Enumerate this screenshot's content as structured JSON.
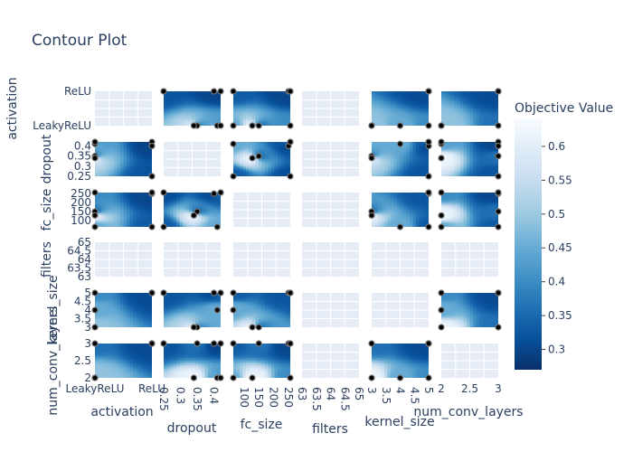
{
  "chart_data": {
    "type": "contour",
    "title": "Contour Plot",
    "parameters": [
      "activation",
      "dropout",
      "fc_size",
      "filters",
      "kernel_size",
      "num_conv_layers"
    ],
    "axes": {
      "activation": {
        "categories": [
          "LeakyReLU",
          "ReLU"
        ],
        "tick_labels": [
          "LeakyReLU",
          "ReLU"
        ]
      },
      "dropout": {
        "range": [
          0.25,
          0.42
        ],
        "tick_labels": [
          "0.25",
          "0.3",
          "0.35",
          "0.4"
        ]
      },
      "fc_size": {
        "range": [
          64,
          256
        ],
        "tick_labels": [
          "100",
          "150",
          "200",
          "250"
        ]
      },
      "filters": {
        "range": [
          63,
          65
        ],
        "tick_labels": [
          "63",
          "63.5",
          "64",
          "64.5",
          "65"
        ]
      },
      "kernel_size": {
        "range": [
          3,
          5
        ],
        "tick_labels": [
          "3",
          "3.5",
          "4",
          "4.5",
          "5"
        ]
      },
      "num_conv_layers": {
        "range": [
          2,
          3
        ],
        "tick_labels": [
          "2",
          "2.5",
          "3"
        ]
      }
    },
    "colorbar": {
      "title": "Objective Value",
      "range": [
        0.27,
        0.64
      ],
      "tick_labels": [
        "0.3",
        "0.35",
        "0.4",
        "0.45",
        "0.5",
        "0.55",
        "0.6"
      ],
      "colorscale": [
        "#08306b",
        "#08519c",
        "#2171b5",
        "#4292c6",
        "#6baed6",
        "#9ecae1",
        "#c6dbef",
        "#deebf7",
        "#f7fbff"
      ]
    },
    "trials": [
      {
        "activation": "ReLU",
        "dropout": 0.25,
        "fc_size": 64,
        "filters": 64,
        "kernel_size": 5,
        "num_conv_layers": 3,
        "value": 0.33
      },
      {
        "activation": "ReLU",
        "dropout": 0.42,
        "fc_size": 256,
        "filters": 64,
        "kernel_size": 5,
        "num_conv_layers": 3,
        "value": 0.29
      },
      {
        "activation": "ReLU",
        "dropout": 0.4,
        "fc_size": 250,
        "filters": 64,
        "kernel_size": 5,
        "num_conv_layers": 3,
        "value": 0.3
      },
      {
        "activation": "LeakyReLU",
        "dropout": 0.35,
        "fc_size": 150,
        "filters": 64,
        "kernel_size": 3,
        "num_conv_layers": 3,
        "value": 0.36
      },
      {
        "activation": "LeakyReLU",
        "dropout": 0.34,
        "fc_size": 128,
        "filters": 64,
        "kernel_size": 3,
        "num_conv_layers": 2,
        "value": 0.62
      },
      {
        "activation": "LeakyReLU",
        "dropout": 0.41,
        "fc_size": 64,
        "filters": 64,
        "kernel_size": 4,
        "num_conv_layers": 2,
        "value": 0.45
      },
      {
        "activation": "ReLU",
        "dropout": 0.25,
        "fc_size": 256,
        "filters": 64,
        "kernel_size": 5,
        "num_conv_layers": 3,
        "value": 0.31
      },
      {
        "activation": "LeakyReLU",
        "dropout": 0.42,
        "fc_size": 256,
        "filters": 64,
        "kernel_size": 5,
        "num_conv_layers": 2,
        "value": 0.4
      }
    ]
  },
  "colors": {
    "grid_bg": "#e5ecf6",
    "text": "#2a3f5f",
    "point": "#000000",
    "point_border": "#777777"
  }
}
